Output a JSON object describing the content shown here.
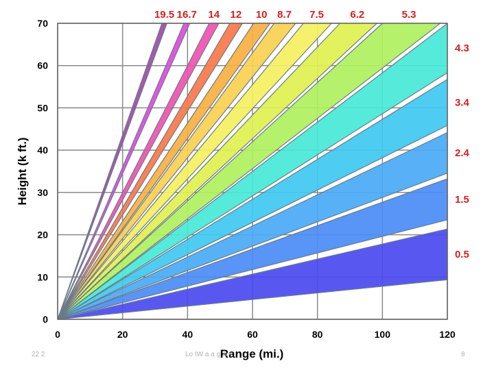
{
  "chart_data": {
    "type": "area",
    "xlabel": "Range (mi.)",
    "ylabel": "Height (k ft.)",
    "xlim": [
      0,
      120
    ],
    "ylim": [
      0,
      70
    ],
    "x_ticks": [
      "0",
      "20",
      "40",
      "60",
      "80",
      "100",
      "120"
    ],
    "y_ticks": [
      "0",
      "10",
      "20",
      "30",
      "40",
      "50",
      "60",
      "70"
    ],
    "grid": true,
    "beams": [
      {
        "label": "0.5",
        "slope_low": 0.078,
        "slope_high": 0.178,
        "color": "#4a4af0"
      },
      {
        "label": "1.5",
        "slope_low": 0.196,
        "slope_high": 0.277,
        "color": "#4a8cf5"
      },
      {
        "label": "2.4",
        "slope_low": 0.288,
        "slope_high": 0.368,
        "color": "#4aaaf5"
      },
      {
        "label": "3.4",
        "slope_low": 0.382,
        "slope_high": 0.473,
        "color": "#40c8f0"
      },
      {
        "label": "4.3",
        "slope_low": 0.486,
        "slope_high": 0.583,
        "color": "#48e8d8"
      },
      {
        "label": "5.3",
        "slope_low": 0.594,
        "slope_high": 0.7,
        "color": "#b0f060"
      },
      {
        "label": "6.2",
        "slope_low": 0.712,
        "slope_high": 0.805,
        "color": "#e0f050"
      },
      {
        "label": "7.5",
        "slope_low": 0.83,
        "slope_high": 0.925,
        "color": "#f5f060"
      },
      {
        "label": "8.7",
        "slope_low": 0.955,
        "slope_high": 1.05,
        "color": "#f8d050"
      },
      {
        "label": "10",
        "slope_low": 1.07,
        "slope_high": 1.16,
        "color": "#f8b040"
      },
      {
        "label": "12",
        "slope_low": 1.23,
        "slope_high": 1.32,
        "color": "#f87848"
      },
      {
        "label": "14",
        "slope_low": 1.41,
        "slope_high": 1.5,
        "color": "#f050b0"
      },
      {
        "label": "16.7",
        "slope_low": 1.72,
        "slope_high": 1.8,
        "color": "#e048e0"
      },
      {
        "label": "19.5",
        "slope_low": 2.08,
        "slope_high": 2.18,
        "color": "#a04aa8"
      }
    ]
  },
  "footer": {
    "left": "22   2",
    "center": "Lo  IW      a      a      g  am",
    "right": "8"
  }
}
